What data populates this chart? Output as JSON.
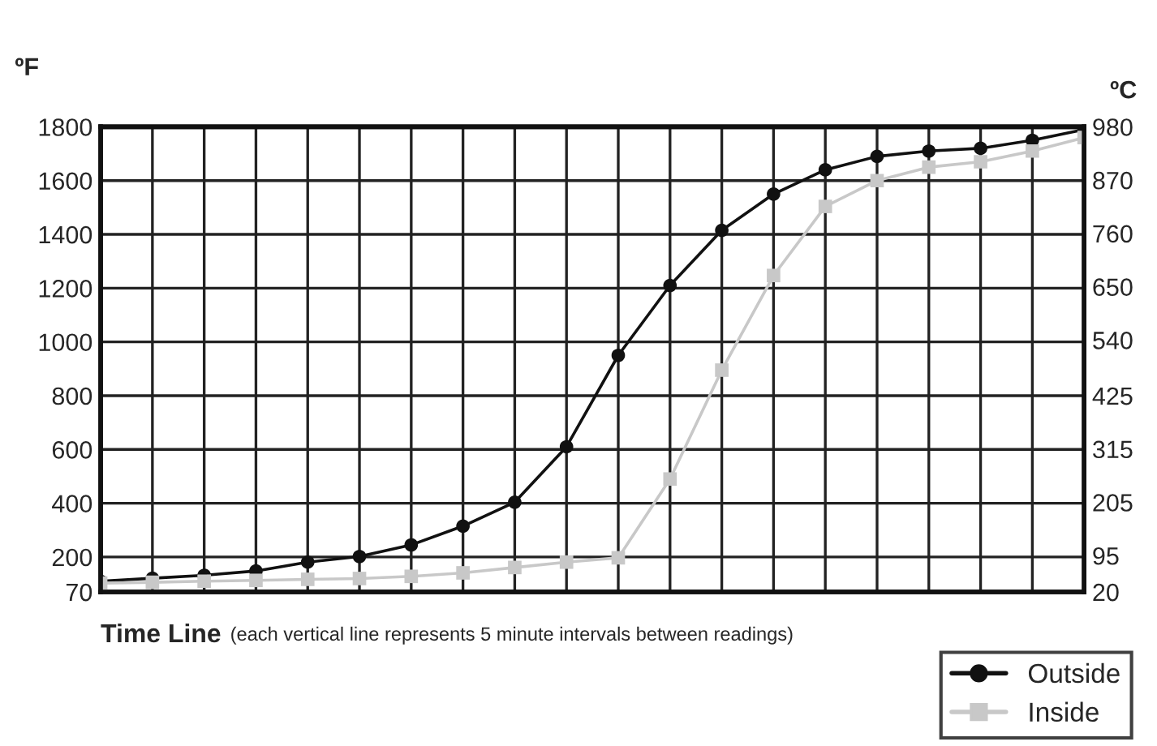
{
  "chart_data": {
    "type": "line",
    "ylabel": "ºF",
    "y2label": "ºC",
    "xlabel": "Time Line",
    "annotations": [
      "(each vertical line represents 5 minute intervals between readings)"
    ],
    "categories": [
      null,
      null,
      null,
      null,
      null,
      null,
      null,
      null,
      null,
      null,
      null,
      null,
      null,
      null,
      null,
      null,
      null,
      null,
      null,
      null
    ],
    "series": [
      {
        "name": "Outside",
        "color": "#111111",
        "marker": "circle",
        "values": [
          110,
          121,
          132,
          148,
          181,
          202,
          245,
          315,
          404,
          610,
          950,
          1210,
          1415,
          1550,
          1640,
          1690,
          1710,
          1720,
          1750,
          1790
        ]
      },
      {
        "name": "Inside",
        "color": "#c8c8c8",
        "marker": "square",
        "values": [
          103,
          106,
          110,
          113,
          117,
          120,
          128,
          141,
          161,
          181,
          197,
          490,
          895,
          1247,
          1504,
          1600,
          1650,
          1670,
          1710,
          1760
        ]
      }
    ],
    "ylim": [
      70,
      1800
    ],
    "yticks": [
      70,
      200,
      400,
      600,
      800,
      1000,
      1200,
      1400,
      1600,
      1800
    ],
    "y2lim": [
      20,
      980
    ],
    "y2ticks": [
      20,
      95,
      205,
      315,
      425,
      540,
      650,
      760,
      870,
      980
    ],
    "grid": true,
    "legend": "bottom right",
    "tick_labels": "y",
    "line_style": "solid"
  }
}
